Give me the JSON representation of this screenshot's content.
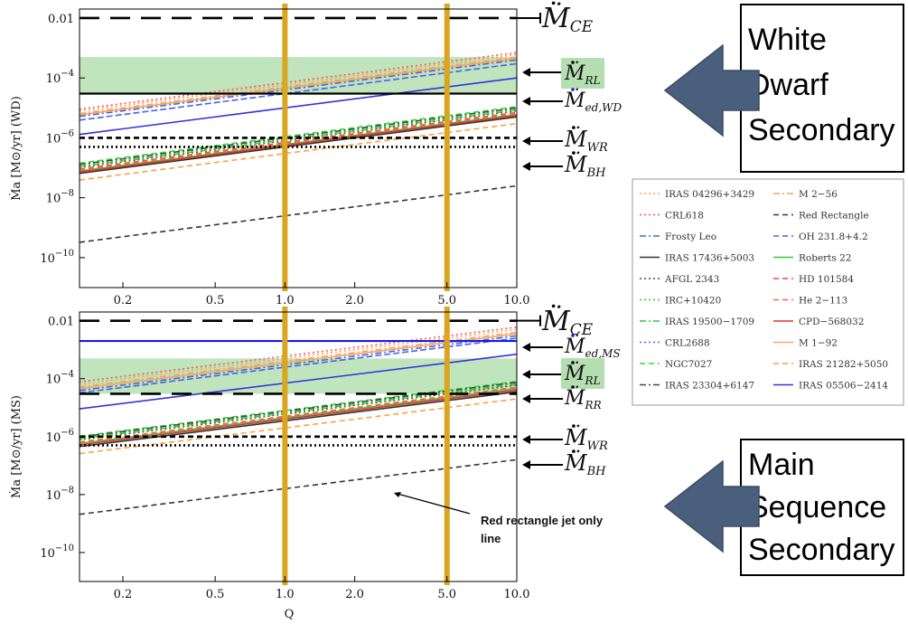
{
  "chart_data": [
    {
      "id": "top",
      "type": "line",
      "xscale": "log",
      "yscale": "log",
      "xlim": [
        0.13,
        10.0
      ],
      "ylim": [
        1e-11,
        0.02
      ],
      "ylabel": "Ṁa [M⊙/yr] (WD)",
      "xticks": [
        {
          "v": 0.2,
          "t": "0.2"
        },
        {
          "v": 0.5,
          "t": "0.5"
        },
        {
          "v": 1,
          "t": "1.0"
        },
        {
          "v": 2,
          "t": "2.0"
        },
        {
          "v": 5,
          "t": "5.0"
        },
        {
          "v": 10,
          "t": "10.0"
        }
      ],
      "yticks": [
        {
          "v": 0.01,
          "t": "0.01",
          "e": null
        },
        {
          "v": 0.0001,
          "t": "10",
          "e": "−4"
        },
        {
          "v": 1e-06,
          "t": "10",
          "e": "−6"
        },
        {
          "v": 1e-08,
          "t": "10",
          "e": "−8"
        },
        {
          "v": 1e-10,
          "t": "10",
          "e": "−10"
        }
      ],
      "vlines": [
        1.0,
        5.0
      ],
      "band": [
        3e-05,
        0.0005
      ],
      "hlines": [
        {
          "name": "CE",
          "y": 0.01,
          "style": "longdash",
          "label": "Ṁ",
          "sub": "CE",
          "color": "#000000"
        },
        {
          "name": "RL",
          "y": 3e-05,
          "style": "solid",
          "label": "Ṁ",
          "sub": "RL",
          "color": "#000000"
        },
        {
          "name": "ed,WD",
          "y": 3e-05,
          "style": "none",
          "label": "Ṁ",
          "sub": "ed,WD",
          "color": "#1a1ae6"
        },
        {
          "name": "WR",
          "y": 1e-06,
          "style": "dash",
          "label": "Ṁ",
          "sub": "WR",
          "color": "#000000"
        },
        {
          "name": "BH",
          "y": 5e-07,
          "style": "dot",
          "label": "Ṁ",
          "sub": "BH",
          "color": "#000000"
        }
      ],
      "series": [
        {
          "name": "IRAS 04296+3429",
          "y10": 0.0006,
          "color": "#f4a460",
          "style": "dot"
        },
        {
          "name": "M 2−56",
          "y10": 0.0005,
          "color": "#f4a460",
          "style": "dashdot"
        },
        {
          "name": "CRL618",
          "y10": 0.0007,
          "color": "#ff5555",
          "style": "dot"
        },
        {
          "name": "Red Rectangle",
          "y10": 2.5e-08,
          "color": "#333333",
          "style": "dash"
        },
        {
          "name": "Frosty Leo",
          "y10": 0.0004,
          "color": "#4169e1",
          "style": "dashdot"
        },
        {
          "name": "OH 231.8+4.2",
          "y10": 0.0003,
          "color": "#4169e1",
          "style": "dash"
        },
        {
          "name": "IRAS 17436+5003",
          "y10": 5e-06,
          "color": "#333333",
          "style": "solid"
        },
        {
          "name": "Roberts 22",
          "y10": 6e-06,
          "color": "#33cc33",
          "style": "solid"
        },
        {
          "name": "AFGL 2343",
          "y10": 8e-06,
          "color": "#444466",
          "style": "dot"
        },
        {
          "name": "HD 101584",
          "y10": 7e-06,
          "color": "#ff4444",
          "style": "dash"
        },
        {
          "name": "IRC+10420",
          "y10": 9e-06,
          "color": "#33cc33",
          "style": "dot"
        },
        {
          "name": "He 2−113",
          "y10": 6.5e-06,
          "color": "#ff6644",
          "style": "dash"
        },
        {
          "name": "IRAS 19500−1709",
          "y10": 8.5e-06,
          "color": "#33cc33",
          "style": "dashdot"
        },
        {
          "name": "CPD−568032",
          "y10": 5.5e-06,
          "color": "#dd3333",
          "style": "solid"
        },
        {
          "name": "CRL2688",
          "y10": 0.0003,
          "color": "#6666ee",
          "style": "dot"
        },
        {
          "name": "M 1−92",
          "y10": 0.00045,
          "color": "#f4a460",
          "style": "solid"
        },
        {
          "name": "NGC7027",
          "y10": 1.1e-05,
          "color": "#33dd33",
          "style": "dash"
        },
        {
          "name": "IRAS 21282+5050",
          "y10": 3e-06,
          "color": "#ffa040",
          "style": "dash"
        },
        {
          "name": "IRAS 23304+6147",
          "y10": 1e-05,
          "color": "#444444",
          "style": "dashdot"
        },
        {
          "name": "IRAS 05506−2414",
          "y10": 0.0001,
          "color": "#3333dd",
          "style": "solid"
        }
      ]
    },
    {
      "id": "bottom",
      "type": "line",
      "xscale": "log",
      "yscale": "log",
      "xlim": [
        0.13,
        10.0
      ],
      "ylim": [
        1e-11,
        0.02
      ],
      "xlabel": "Q",
      "ylabel": "Ṁa [M⊙/yr] (MS)",
      "xticks": [
        {
          "v": 0.2,
          "t": "0.2"
        },
        {
          "v": 0.5,
          "t": "0.5"
        },
        {
          "v": 1,
          "t": "1.0"
        },
        {
          "v": 2,
          "t": "2.0"
        },
        {
          "v": 5,
          "t": "5.0"
        },
        {
          "v": 10,
          "t": "10.0"
        }
      ],
      "yticks": [
        {
          "v": 0.01,
          "t": "0.01",
          "e": null
        },
        {
          "v": 0.0001,
          "t": "10",
          "e": "−4"
        },
        {
          "v": 1e-06,
          "t": "10",
          "e": "−6"
        },
        {
          "v": 1e-08,
          "t": "10",
          "e": "−8"
        },
        {
          "v": 1e-10,
          "t": "10",
          "e": "−10"
        }
      ],
      "vlines": [
        1.0,
        5.0
      ],
      "band": [
        3e-05,
        0.0005
      ],
      "hlines": [
        {
          "name": "CE",
          "y": 0.01,
          "style": "longdash",
          "label": "Ṁ",
          "sub": "CE",
          "color": "#000000"
        },
        {
          "name": "ed,MS",
          "y": 0.002,
          "style": "solid",
          "label": "Ṁ",
          "sub": "ed,MS",
          "color": "#1a1ae6"
        },
        {
          "name": "RL",
          "y": 0.0002,
          "style": "none",
          "label": "Ṁ",
          "sub": "RL",
          "color": "#000000"
        },
        {
          "name": "RR",
          "y": 3e-05,
          "style": "longdash",
          "label": "Ṁ",
          "sub": "RR",
          "color": "#000000"
        },
        {
          "name": "WR",
          "y": 1e-06,
          "style": "dash",
          "label": "Ṁ",
          "sub": "WR",
          "color": "#000000"
        },
        {
          "name": "BH",
          "y": 5e-07,
          "style": "dot",
          "label": "Ṁ",
          "sub": "BH",
          "color": "#000000"
        }
      ],
      "series": [
        {
          "name": "IRAS 04296+3429",
          "y10": 0.005,
          "color": "#f4a460",
          "style": "dot"
        },
        {
          "name": "M 2−56",
          "y10": 0.004,
          "color": "#f4a460",
          "style": "dashdot"
        },
        {
          "name": "CRL618",
          "y10": 0.006,
          "color": "#ff5555",
          "style": "dot"
        },
        {
          "name": "Red Rectangle",
          "y10": 1.6e-07,
          "color": "#333333",
          "style": "dash"
        },
        {
          "name": "Frosty Leo",
          "y10": 0.003,
          "color": "#4169e1",
          "style": "dashdot"
        },
        {
          "name": "OH 231.8+4.2",
          "y10": 0.0025,
          "color": "#4169e1",
          "style": "dash"
        },
        {
          "name": "IRAS 17436+5003",
          "y10": 3.5e-05,
          "color": "#333333",
          "style": "solid"
        },
        {
          "name": "Roberts 22",
          "y10": 4.5e-05,
          "color": "#33cc33",
          "style": "solid"
        },
        {
          "name": "AFGL 2343",
          "y10": 6e-05,
          "color": "#444466",
          "style": "dot"
        },
        {
          "name": "HD 101584",
          "y10": 5e-05,
          "color": "#ff4444",
          "style": "dash"
        },
        {
          "name": "IRC+10420",
          "y10": 7e-05,
          "color": "#33cc33",
          "style": "dot"
        },
        {
          "name": "He 2−113",
          "y10": 4.8e-05,
          "color": "#ff6644",
          "style": "dash"
        },
        {
          "name": "IRAS 19500−1709",
          "y10": 6.5e-05,
          "color": "#33cc33",
          "style": "dashdot"
        },
        {
          "name": "CPD−568032",
          "y10": 4e-05,
          "color": "#dd3333",
          "style": "solid"
        },
        {
          "name": "CRL2688",
          "y10": 0.0025,
          "color": "#6666ee",
          "style": "dot"
        },
        {
          "name": "M 1−92",
          "y10": 0.0035,
          "color": "#f4a460",
          "style": "solid"
        },
        {
          "name": "NGC7027",
          "y10": 8e-05,
          "color": "#33dd33",
          "style": "dash"
        },
        {
          "name": "IRAS 21282+5050",
          "y10": 2e-05,
          "color": "#ffa040",
          "style": "dash"
        },
        {
          "name": "IRAS 23304+6147",
          "y10": 7.5e-05,
          "color": "#444444",
          "style": "dashdot"
        },
        {
          "name": "IRAS 05506−2414",
          "y10": 0.0007,
          "color": "#3333dd",
          "style": "solid"
        }
      ],
      "annotation": {
        "text_line1": "Red rectangle jet only",
        "text_line2": "line",
        "x": 0.5,
        "y": 3e-08
      }
    }
  ],
  "callouts": {
    "top": {
      "line1": "White",
      "line2": "Dwarf",
      "line3": "Secondary"
    },
    "bottom": {
      "line1": "Main",
      "line2": "Sequence",
      "line3": "Secondary"
    }
  },
  "colors": {
    "vline": "#daa520",
    "band": "#b5dfb0",
    "arrow": "#4a5f7d"
  },
  "legend": [
    {
      "name": "IRAS 04296+3429",
      "color": "#f4a460",
      "style": "dot"
    },
    {
      "name": "M 2−56",
      "color": "#f4a460",
      "style": "dashdot"
    },
    {
      "name": "CRL618",
      "color": "#ff5555",
      "style": "dot"
    },
    {
      "name": "Red Rectangle",
      "color": "#333333",
      "style": "dash"
    },
    {
      "name": "Frosty Leo",
      "color": "#4169e1",
      "style": "dashdot"
    },
    {
      "name": "OH 231.8+4.2",
      "color": "#4169e1",
      "style": "dash"
    },
    {
      "name": "IRAS 17436+5003",
      "color": "#333333",
      "style": "solid"
    },
    {
      "name": "Roberts 22",
      "color": "#33cc33",
      "style": "solid"
    },
    {
      "name": "AFGL 2343",
      "color": "#444466",
      "style": "dot"
    },
    {
      "name": "HD 101584",
      "color": "#ff4444",
      "style": "dash"
    },
    {
      "name": "IRC+10420",
      "color": "#33cc33",
      "style": "dot"
    },
    {
      "name": "He 2−113",
      "color": "#ff6644",
      "style": "dash"
    },
    {
      "name": "IRAS 19500−1709",
      "color": "#33cc33",
      "style": "dashdot"
    },
    {
      "name": "CPD−568032",
      "color": "#dd3333",
      "style": "solid"
    },
    {
      "name": "CRL2688",
      "color": "#6666ee",
      "style": "dot"
    },
    {
      "name": "M 1−92",
      "color": "#f4a460",
      "style": "solid"
    },
    {
      "name": "NGC7027",
      "color": "#33dd33",
      "style": "dash"
    },
    {
      "name": "IRAS 21282+5050",
      "color": "#ffa040",
      "style": "dash"
    },
    {
      "name": "IRAS 23304+6147",
      "color": "#444444",
      "style": "dashdot"
    },
    {
      "name": "IRAS 05506−2414",
      "color": "#3333dd",
      "style": "solid"
    }
  ]
}
